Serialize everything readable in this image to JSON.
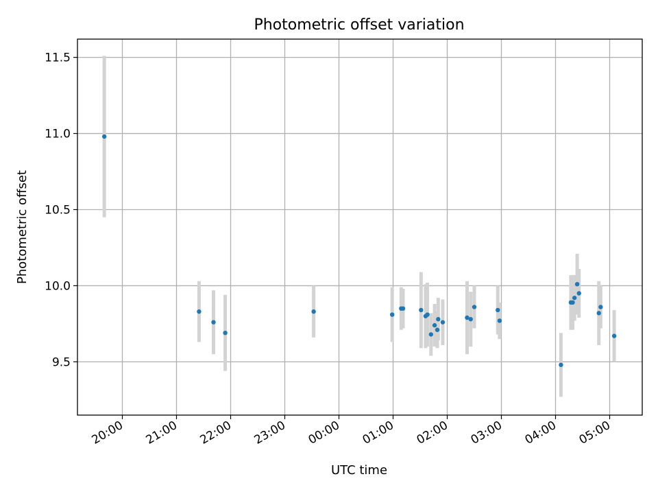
{
  "chart_data": {
    "type": "scatter",
    "title": "Photometric offset variation",
    "xlabel": "UTC time",
    "ylabel": "Photometric offset",
    "x_ticks": [
      "20:00",
      "21:00",
      "22:00",
      "23:00",
      "00:00",
      "01:00",
      "02:00",
      "03:00",
      "04:00",
      "05:00"
    ],
    "y_ticks": [
      "9.5",
      "10.0",
      "10.5",
      "11.0",
      "11.5"
    ],
    "ylim": [
      9.15,
      11.62
    ],
    "xlim_hours_from_first_tick": [
      -0.82,
      9.62
    ],
    "grid": true,
    "colors": {
      "point": "#1f77b4",
      "errorbar": "#d3d3d3",
      "grid": "#b0b0b0"
    },
    "points": [
      {
        "time": "19:40",
        "y": 10.98,
        "err": 0.53
      },
      {
        "time": "21:25",
        "y": 9.83,
        "err": 0.2
      },
      {
        "time": "21:41",
        "y": 9.76,
        "err": 0.21
      },
      {
        "time": "21:54",
        "y": 9.69,
        "err": 0.25
      },
      {
        "time": "23:32",
        "y": 9.83,
        "err": 0.17
      },
      {
        "time": "00:59",
        "y": 9.81,
        "err": 0.18
      },
      {
        "time": "01:09",
        "y": 9.85,
        "err": 0.14
      },
      {
        "time": "01:11",
        "y": 9.85,
        "err": 0.13
      },
      {
        "time": "01:31",
        "y": 9.84,
        "err": 0.25
      },
      {
        "time": "01:36",
        "y": 9.8,
        "err": 0.21
      },
      {
        "time": "01:38",
        "y": 9.81,
        "err": 0.21
      },
      {
        "time": "01:42",
        "y": 9.68,
        "err": 0.14
      },
      {
        "time": "01:46",
        "y": 9.74,
        "err": 0.14
      },
      {
        "time": "01:49",
        "y": 9.71,
        "err": 0.12
      },
      {
        "time": "01:50",
        "y": 9.78,
        "err": 0.14
      },
      {
        "time": "01:55",
        "y": 9.76,
        "err": 0.15
      },
      {
        "time": "02:22",
        "y": 9.79,
        "err": 0.24
      },
      {
        "time": "02:26",
        "y": 9.78,
        "err": 0.18
      },
      {
        "time": "02:30",
        "y": 9.86,
        "err": 0.14
      },
      {
        "time": "02:56",
        "y": 9.84,
        "err": 0.16
      },
      {
        "time": "02:58",
        "y": 9.77,
        "err": 0.12
      },
      {
        "time": "04:06",
        "y": 9.48,
        "err": 0.21
      },
      {
        "time": "04:17",
        "y": 9.89,
        "err": 0.18
      },
      {
        "time": "04:19",
        "y": 9.89,
        "err": 0.18
      },
      {
        "time": "04:21",
        "y": 9.92,
        "err": 0.15
      },
      {
        "time": "04:24",
        "y": 10.01,
        "err": 0.2
      },
      {
        "time": "04:26",
        "y": 9.95,
        "err": 0.16
      },
      {
        "time": "04:48",
        "y": 9.82,
        "err": 0.21
      },
      {
        "time": "04:50",
        "y": 9.86,
        "err": 0.14
      },
      {
        "time": "05:05",
        "y": 9.67,
        "err": 0.17
      }
    ]
  }
}
